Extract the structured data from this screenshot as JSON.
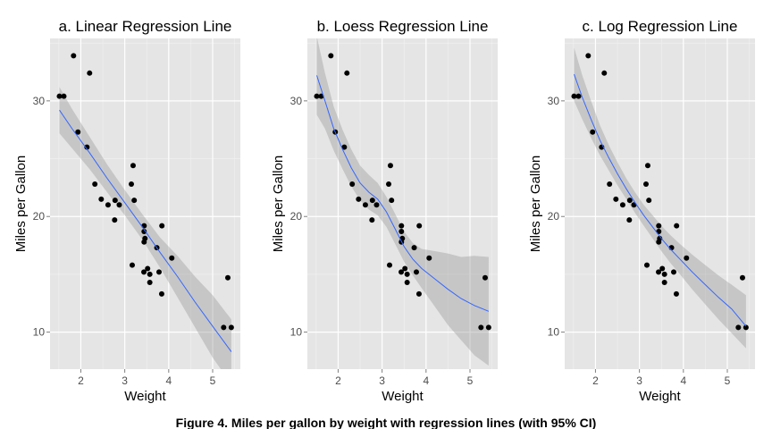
{
  "caption": "Figure 4. Miles per gallon by weight with regression lines (with 95% CI)",
  "colors": {
    "panel_bg": "#e5e5e5",
    "grid_major": "#ffffff",
    "grid_minor": "#f2f2f2",
    "point": "#000000",
    "line": "#3366ff",
    "ribbon": "#999999",
    "tick_text": "#4d4d4d"
  },
  "chart_data": [
    {
      "type": "scatter",
      "title": "a. Linear Regression Line",
      "xlabel": "Weight",
      "ylabel": "Miles per Gallon",
      "xlim": [
        1.3,
        5.63
      ],
      "ylim": [
        6.8,
        35.4
      ],
      "xticks": [
        2,
        3,
        4,
        5
      ],
      "yticks": [
        10,
        20,
        30
      ],
      "grid": true,
      "points": {
        "x": [
          2.62,
          2.875,
          2.32,
          3.215,
          3.44,
          3.46,
          3.57,
          3.19,
          3.15,
          3.44,
          3.44,
          4.07,
          3.73,
          3.78,
          5.25,
          5.424,
          5.345,
          2.2,
          1.615,
          1.835,
          2.465,
          3.52,
          3.435,
          3.84,
          3.845,
          1.935,
          2.14,
          1.513,
          3.17,
          2.77,
          3.57,
          2.78
        ],
        "y": [
          21.0,
          21.0,
          22.8,
          21.4,
          18.7,
          18.1,
          14.3,
          24.4,
          22.8,
          19.2,
          17.8,
          16.4,
          17.3,
          15.2,
          10.4,
          10.4,
          14.7,
          32.4,
          30.4,
          33.9,
          21.5,
          15.5,
          15.2,
          13.3,
          19.2,
          27.3,
          26.0,
          30.4,
          15.8,
          19.7,
          15.0,
          21.4
        ]
      },
      "fit": {
        "method": "linear",
        "x": [
          1.513,
          1.8,
          2.2,
          2.6,
          3.0,
          3.4,
          3.8,
          4.2,
          4.6,
          5.0,
          5.424
        ],
        "y": [
          29.2,
          27.6,
          25.5,
          23.3,
          21.2,
          19.1,
          16.9,
          14.8,
          12.6,
          10.5,
          8.3
        ],
        "lower": [
          27.2,
          25.9,
          24.1,
          22.1,
          20.1,
          18.0,
          15.6,
          13.0,
          10.4,
          7.8,
          5.5
        ],
        "upper": [
          31.2,
          29.3,
          26.9,
          24.5,
          22.3,
          20.2,
          18.2,
          16.6,
          14.8,
          13.2,
          11.1
        ]
      }
    },
    {
      "type": "scatter",
      "title": "b. Loess Regression Line",
      "xlabel": "Weight",
      "ylabel": "Miles per Gallon",
      "xlim": [
        1.3,
        5.63
      ],
      "ylim": [
        6.8,
        35.4
      ],
      "xticks": [
        2,
        3,
        4,
        5
      ],
      "yticks": [
        10,
        20,
        30
      ],
      "grid": true,
      "points": {
        "x": [
          2.62,
          2.875,
          2.32,
          3.215,
          3.44,
          3.46,
          3.57,
          3.19,
          3.15,
          3.44,
          3.44,
          4.07,
          3.73,
          3.78,
          5.25,
          5.424,
          5.345,
          2.2,
          1.615,
          1.835,
          2.465,
          3.52,
          3.435,
          3.84,
          3.845,
          1.935,
          2.14,
          1.513,
          3.17,
          2.77,
          3.57,
          2.78
        ],
        "y": [
          21.0,
          21.0,
          22.8,
          21.4,
          18.7,
          18.1,
          14.3,
          24.4,
          22.8,
          19.2,
          17.8,
          16.4,
          17.3,
          15.2,
          10.4,
          10.4,
          14.7,
          32.4,
          30.4,
          33.9,
          21.5,
          15.5,
          15.2,
          13.3,
          19.2,
          27.3,
          26.0,
          30.4,
          15.8,
          19.7,
          15.0,
          21.4
        ]
      },
      "fit": {
        "method": "loess",
        "x": [
          1.513,
          1.7,
          1.9,
          2.1,
          2.3,
          2.5,
          2.7,
          2.9,
          3.1,
          3.3,
          3.5,
          3.7,
          3.9,
          4.2,
          4.5,
          4.8,
          5.1,
          5.424
        ],
        "y": [
          32.2,
          30.0,
          27.6,
          25.8,
          24.2,
          22.9,
          22.1,
          21.5,
          20.4,
          18.9,
          17.4,
          16.3,
          15.5,
          14.6,
          13.7,
          12.9,
          12.3,
          11.8
        ],
        "lower": [
          28.8,
          27.6,
          25.7,
          24.1,
          22.6,
          21.4,
          20.6,
          20.1,
          19.1,
          17.6,
          16.1,
          14.9,
          13.8,
          12.2,
          10.6,
          9.3,
          8.0,
          7.1
        ],
        "upper": [
          35.6,
          32.4,
          29.5,
          27.5,
          25.8,
          24.4,
          23.6,
          22.9,
          21.7,
          20.2,
          18.7,
          17.7,
          17.2,
          17.0,
          16.8,
          16.5,
          16.6,
          16.5
        ]
      }
    },
    {
      "type": "scatter",
      "title": "c. Log Regression Line",
      "xlabel": "Weight",
      "ylabel": "Miles per Gallon",
      "xlim": [
        1.3,
        5.63
      ],
      "ylim": [
        6.8,
        35.4
      ],
      "xticks": [
        2,
        3,
        4,
        5
      ],
      "yticks": [
        10,
        20,
        30
      ],
      "grid": true,
      "points": {
        "x": [
          2.62,
          2.875,
          2.32,
          3.215,
          3.44,
          3.46,
          3.57,
          3.19,
          3.15,
          3.44,
          3.44,
          4.07,
          3.73,
          3.78,
          5.25,
          5.424,
          5.345,
          2.2,
          1.615,
          1.835,
          2.465,
          3.52,
          3.435,
          3.84,
          3.845,
          1.935,
          2.14,
          1.513,
          3.17,
          2.77,
          3.57,
          2.78
        ],
        "y": [
          21.0,
          21.0,
          22.8,
          21.4,
          18.7,
          18.1,
          14.3,
          24.4,
          22.8,
          19.2,
          17.8,
          16.4,
          17.3,
          15.2,
          10.4,
          10.4,
          14.7,
          32.4,
          30.4,
          33.9,
          21.5,
          15.5,
          15.2,
          13.3,
          19.2,
          27.3,
          26.0,
          30.4,
          15.8,
          19.7,
          15.0,
          21.4
        ]
      },
      "fit": {
        "method": "log",
        "x": [
          1.513,
          1.7,
          1.9,
          2.1,
          2.3,
          2.5,
          2.7,
          2.9,
          3.1,
          3.3,
          3.5,
          3.7,
          3.9,
          4.2,
          4.5,
          4.8,
          5.1,
          5.424
        ],
        "y": [
          32.3,
          30.3,
          28.4,
          26.6,
          25.1,
          23.7,
          22.4,
          21.2,
          20.1,
          19.1,
          18.1,
          17.2,
          16.4,
          15.2,
          14.1,
          13.0,
          12.0,
          10.5
        ],
        "lower": [
          30.0,
          28.4,
          26.8,
          25.3,
          24.0,
          22.7,
          21.5,
          20.3,
          19.2,
          18.1,
          17.0,
          16.0,
          15.1,
          13.7,
          12.4,
          11.1,
          9.9,
          8.6
        ],
        "upper": [
          34.6,
          32.2,
          30.0,
          27.9,
          26.2,
          24.7,
          23.3,
          22.1,
          21.0,
          20.1,
          19.2,
          18.4,
          17.7,
          16.7,
          15.8,
          14.9,
          14.1,
          13.2
        ]
      }
    }
  ]
}
